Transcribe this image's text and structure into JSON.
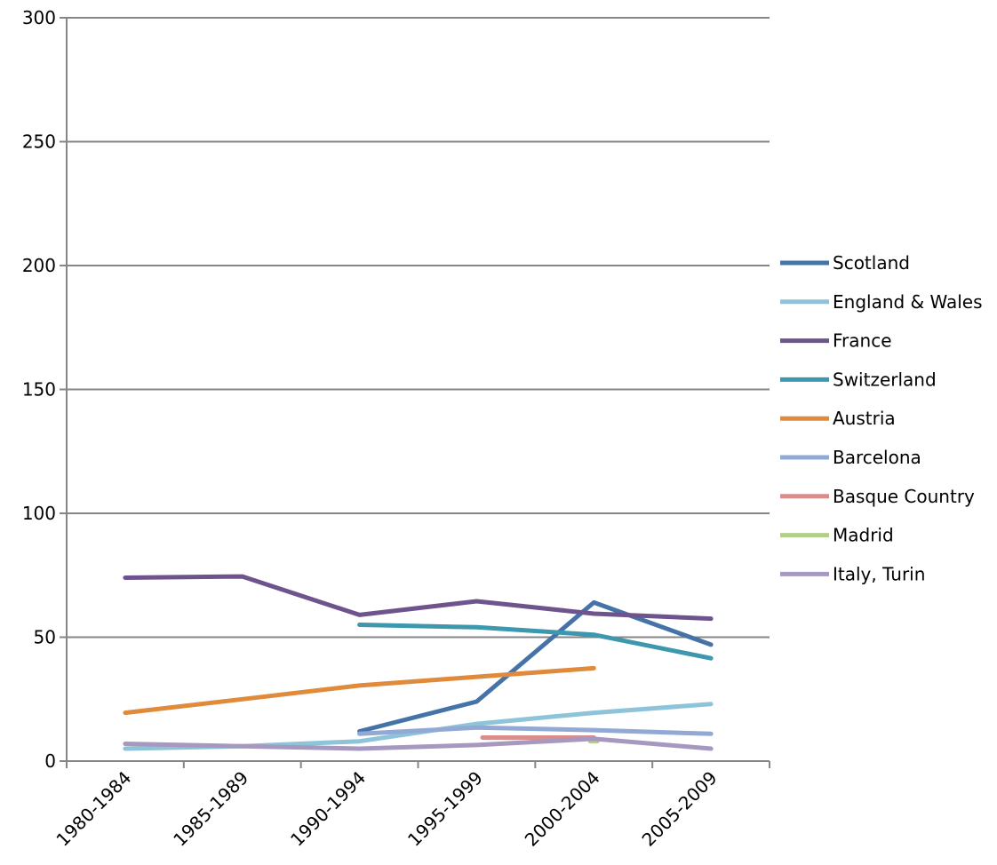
{
  "chart_data": {
    "type": "line",
    "title": "",
    "xlabel": "",
    "ylabel": "",
    "ylim": [
      0,
      300
    ],
    "yticks": [
      0,
      50,
      100,
      150,
      200,
      250,
      300
    ],
    "grid": true,
    "legend_position": "right",
    "categories": [
      "1980-1984",
      "1985-1989",
      "1990-1994",
      "1995-1999",
      "2000-2004",
      "2005-2009"
    ],
    "series": [
      {
        "name": "Scotland",
        "color": "#4573a7",
        "points": [
          {
            "x": 2,
            "y": 12
          },
          {
            "x": 3,
            "y": 24
          },
          {
            "x": 4,
            "y": 64
          },
          {
            "x": 5,
            "y": 47
          }
        ]
      },
      {
        "name": "England & Wales",
        "color": "#8ec4d9",
        "points": [
          {
            "x": 0,
            "y": 5
          },
          {
            "x": 1,
            "y": 6
          },
          {
            "x": 2,
            "y": 8
          },
          {
            "x": 3,
            "y": 15
          },
          {
            "x": 4,
            "y": 19.5
          },
          {
            "x": 5,
            "y": 23
          }
        ]
      },
      {
        "name": "France",
        "color": "#6e548d",
        "points": [
          {
            "x": 0,
            "y": 74
          },
          {
            "x": 1,
            "y": 74.5
          },
          {
            "x": 2,
            "y": 59
          },
          {
            "x": 3,
            "y": 64.5
          },
          {
            "x": 4,
            "y": 59.5
          },
          {
            "x": 5,
            "y": 57.5
          }
        ]
      },
      {
        "name": "Switzerland",
        "color": "#3d97ad",
        "points": [
          {
            "x": 2,
            "y": 55
          },
          {
            "x": 3,
            "y": 54
          },
          {
            "x": 4,
            "y": 51
          },
          {
            "x": 5,
            "y": 41.5
          }
        ]
      },
      {
        "name": "Austria",
        "color": "#e08a3c",
        "points": [
          {
            "x": 0,
            "y": 19.5
          },
          {
            "x": 1,
            "y": 25
          },
          {
            "x": 2,
            "y": 30.5
          },
          {
            "x": 3,
            "y": 34
          },
          {
            "x": 4,
            "y": 37.5
          }
        ]
      },
      {
        "name": "Barcelona",
        "color": "#91a9d4",
        "points": [
          {
            "x": 2,
            "y": 11
          },
          {
            "x": 3,
            "y": 13.5
          },
          {
            "x": 4,
            "y": 12.5
          },
          {
            "x": 5,
            "y": 11
          }
        ]
      },
      {
        "name": "Basque Country",
        "color": "#d98e8c",
        "points": [
          {
            "x": 3.05,
            "y": 9.5
          },
          {
            "x": 4,
            "y": 9.5
          }
        ]
      },
      {
        "name": "Madrid",
        "color": "#b5cf8b",
        "points": [
          {
            "x": 4,
            "y": 8
          }
        ]
      },
      {
        "name": "Italy, Turin",
        "color": "#a698be",
        "points": [
          {
            "x": 0,
            "y": 7
          },
          {
            "x": 1,
            "y": 6
          },
          {
            "x": 2,
            "y": 5
          },
          {
            "x": 3,
            "y": 6.5
          },
          {
            "x": 4,
            "y": 9
          },
          {
            "x": 5,
            "y": 5
          }
        ]
      }
    ]
  }
}
